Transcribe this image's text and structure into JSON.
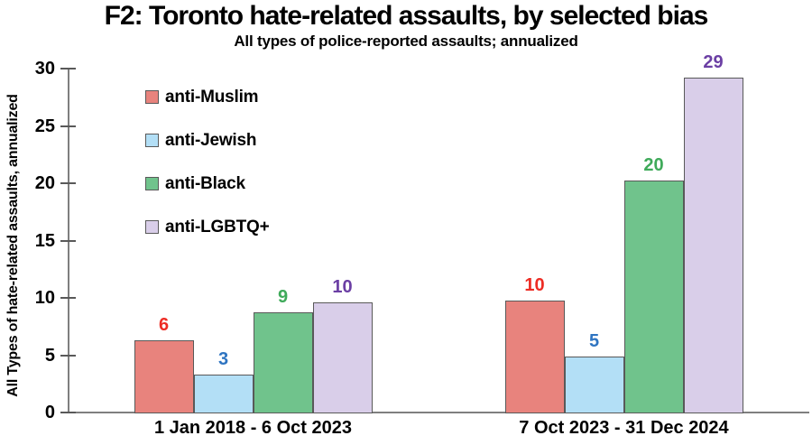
{
  "chart_data": {
    "type": "bar",
    "title": "F2: Toronto hate-related assaults, by selected bias",
    "subtitle": "All types of police-reported assaults; annualized",
    "ylabel": "All Types of hate-related assaults, annualized",
    "xlabel": "",
    "ylim": [
      0,
      30
    ],
    "yticks": [
      0,
      5,
      10,
      15,
      20,
      25,
      30
    ],
    "grid": false,
    "legend_position": "upper-left-inside",
    "categories": [
      "1 Jan 2018 - 6 Oct 2023",
      "7 Oct 2023 - 31 Dec 2024"
    ],
    "series": [
      {
        "name": "anti-Muslim",
        "fill": "#E8837D",
        "label_color": "#ED2C24",
        "values": [
          6.3,
          9.75
        ],
        "labels": [
          "6",
          "10"
        ]
      },
      {
        "name": "anti-Jewish",
        "fill": "#B3DFF6",
        "label_color": "#2E74C1",
        "values": [
          3.3,
          4.9
        ],
        "labels": [
          "3",
          "5"
        ]
      },
      {
        "name": "anti-Black",
        "fill": "#70C38C",
        "label_color": "#3FAA5A",
        "values": [
          8.75,
          20.2
        ],
        "labels": [
          "9",
          "20"
        ]
      },
      {
        "name": "anti-LGBTQ+",
        "fill": "#D9CEE9",
        "label_color": "#6B3FA4",
        "values": [
          9.6,
          29.2
        ],
        "labels": [
          "10",
          "29"
        ]
      }
    ],
    "colors": {
      "axis": "#7F7F7F",
      "tick_mark": "#595959",
      "bar_border": "#595959",
      "text": "#000000",
      "background": "#FFFFFF"
    }
  }
}
